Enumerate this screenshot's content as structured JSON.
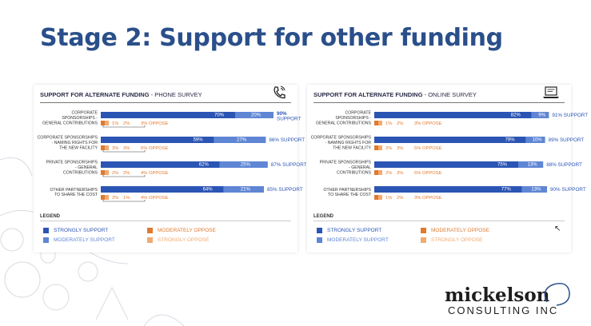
{
  "slide": {
    "title": "Stage 2: Support for other funding",
    "logo_main": "mickelson",
    "logo_sub": "CONSULTING INC"
  },
  "colors": {
    "strongly_support": "#2b55b4",
    "moderately_support": "#5f86d4",
    "moderately_oppose": "#e07a30",
    "strongly_oppose": "#f2aa70",
    "title": "#2a4f8a"
  },
  "legend": {
    "title": "LEGEND",
    "items": [
      {
        "label": "STRONGLY SUPPORT",
        "color": "#2b55b4"
      },
      {
        "label": "MODERATELY SUPPORT",
        "color": "#5f86d4"
      },
      {
        "label": "MODERATELY OPPOSE",
        "color": "#e07a30"
      },
      {
        "label": "STRONGLY OPPOSE",
        "color": "#f2aa70"
      }
    ]
  },
  "chart_data": [
    {
      "type": "bar",
      "stacked": true,
      "title_bold": "SUPPORT FOR ALTERNATE FUNDING",
      "title_rest": " - PHONE SURVEY",
      "icon": "phone-icon",
      "categories": [
        [
          "CORPORATE",
          "SPONSORSHIPS -",
          "GENERAL CONTRIBUTIONS"
        ],
        [
          "CORPORATE SPONSORSHIPS",
          "- NAMING RIGHTS FOR",
          "THE NEW FACILITY"
        ],
        [
          "PRIVATE SPONSORSHIPS",
          "- GENERAL",
          "CONTRIBUTIONS"
        ],
        [
          "OTHER PARTNERSHIPS",
          "TO SHARE THE COST"
        ]
      ],
      "series": [
        {
          "name": "STRONGLY SUPPORT",
          "values": [
            70,
            59,
            62,
            64
          ]
        },
        {
          "name": "MODERATELY SUPPORT",
          "values": [
            20,
            27,
            25,
            21
          ]
        },
        {
          "name": "MODERATELY OPPOSE",
          "values": [
            1,
            3,
            2,
            3
          ]
        },
        {
          "name": "STRONGLY OPPOSE",
          "values": [
            2,
            3,
            2,
            1
          ]
        }
      ],
      "support_labels": [
        "90% SUPPORT",
        "86% SUPPORT",
        "87% SUPPORT",
        "85% SUPPORT"
      ],
      "oppose_labels": [
        "3% OPPOSE",
        "6% OPPOSE",
        "4% OPPOSE",
        "4% OPPOSE"
      ]
    },
    {
      "type": "bar",
      "stacked": true,
      "title_bold": "SUPPORT FOR ALTERNATE FUNDING",
      "title_rest": " - ONLINE SURVEY",
      "icon": "laptop-icon",
      "categories": [
        [
          "CORPORATE",
          "SPONSORSHIPS -",
          "GENERAL CONTRIBUTIONS"
        ],
        [
          "CORPORATE SPONSORSHIPS",
          "- NAMING RIGHTS FOR",
          "THE NEW FACILITY"
        ],
        [
          "PRIVATE SPONSORSHIPS",
          "- GENERAL",
          "CONTRIBUTIONS"
        ],
        [
          "OTHER PARTNERSHIPS",
          "TO SHARE THE COST"
        ]
      ],
      "series": [
        {
          "name": "STRONGLY SUPPORT",
          "values": [
            82,
            79,
            75,
            77
          ]
        },
        {
          "name": "MODERATELY SUPPORT",
          "values": [
            9,
            10,
            13,
            13
          ]
        },
        {
          "name": "MODERATELY OPPOSE",
          "values": [
            1,
            2,
            2,
            1
          ]
        },
        {
          "name": "STRONGLY OPPOSE",
          "values": [
            2,
            3,
            3,
            2
          ]
        }
      ],
      "support_labels": [
        "91% SUPPORT",
        "89% SUPPORT",
        "88% SUPPORT",
        "90% SUPPORT"
      ],
      "oppose_labels": [
        "3% OPPOSE",
        "5% OPPOSE",
        "5% OPPOSE",
        "3% OPPOSE"
      ]
    }
  ]
}
